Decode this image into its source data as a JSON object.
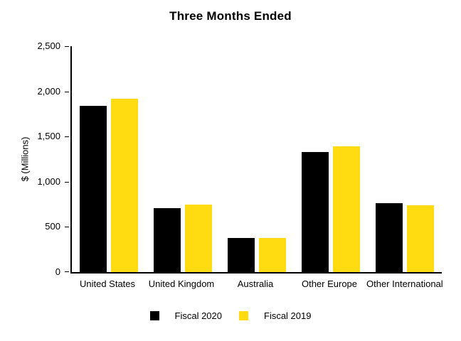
{
  "chart_data": {
    "type": "bar",
    "title": "Three Months Ended",
    "xlabel": "",
    "ylabel": "$ (Millions)",
    "ylim": [
      0,
      2500
    ],
    "grid": false,
    "legend_position": "bottom",
    "categories": [
      "United States",
      "United Kingdom",
      "Australia",
      "Other Europe",
      "Other International"
    ],
    "series": [
      {
        "name": "Fiscal 2020",
        "color": "#000000",
        "values": [
          1840,
          710,
          380,
          1330,
          765
        ]
      },
      {
        "name": "Fiscal 2019",
        "color": "#FFDC12",
        "values": [
          1920,
          750,
          375,
          1390,
          740
        ]
      }
    ],
    "yticks": [
      {
        "value": 0,
        "label": "0"
      },
      {
        "value": 500,
        "label": "500"
      },
      {
        "value": 1000,
        "label": "1,000"
      },
      {
        "value": 1500,
        "label": "1,500"
      },
      {
        "value": 2000,
        "label": "2,000"
      },
      {
        "value": 2500,
        "label": "2,500"
      }
    ]
  },
  "colors": {
    "background": "#FFFFFF",
    "axis": "#000000",
    "fiscal_2020": "#000000",
    "fiscal_2019": "#FFDC12"
  }
}
